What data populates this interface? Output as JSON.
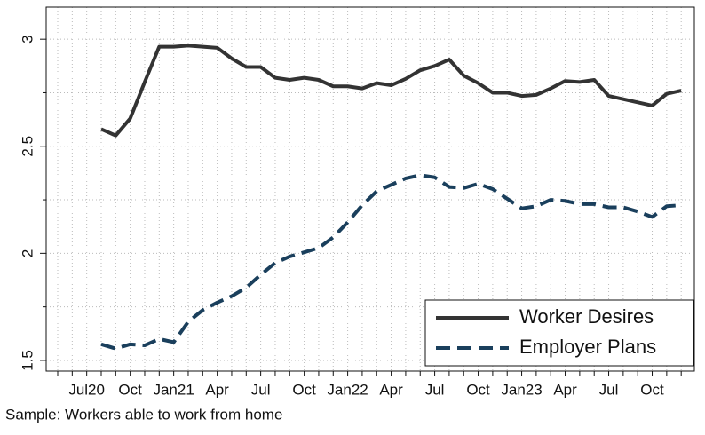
{
  "chart_data": {
    "type": "line",
    "note": "Sample: Workers able to work from home",
    "categories": [
      null,
      null,
      "Jul20",
      null,
      null,
      "Oct",
      null,
      null,
      "Jan21",
      null,
      null,
      "Apr",
      null,
      null,
      "Jul",
      null,
      null,
      "Oct",
      null,
      null,
      "Jan22",
      null,
      null,
      "Apr",
      null,
      null,
      "Jul",
      null,
      null,
      "Oct",
      null,
      null,
      "Jan23",
      null,
      null,
      "Apr",
      null,
      null,
      "Jul",
      null,
      null,
      "Oct",
      null,
      null
    ],
    "series": [
      {
        "name": "Worker Desires",
        "color": "#333333",
        "dash": false,
        "values": [
          null,
          null,
          null,
          2.58,
          2.55,
          2.63,
          2.8,
          2.965,
          2.965,
          2.97,
          2.965,
          2.96,
          2.91,
          2.87,
          2.87,
          2.82,
          2.81,
          2.82,
          2.81,
          2.78,
          2.78,
          2.77,
          2.795,
          2.785,
          2.815,
          2.855,
          2.875,
          2.905,
          2.83,
          2.795,
          2.75,
          2.75,
          2.735,
          2.74,
          2.77,
          2.805,
          2.8,
          2.81,
          2.735,
          2.72,
          2.705,
          2.69,
          2.745,
          2.76
        ]
      },
      {
        "name": "Employer Plans",
        "color": "#1a3f5c",
        "dash": true,
        "values": [
          null,
          null,
          null,
          1.575,
          1.555,
          1.575,
          1.57,
          1.6,
          1.585,
          1.68,
          1.735,
          1.77,
          1.8,
          1.84,
          1.9,
          1.955,
          1.985,
          2.005,
          2.025,
          2.075,
          2.145,
          2.225,
          2.29,
          2.32,
          2.35,
          2.365,
          2.355,
          2.31,
          2.305,
          2.325,
          2.3,
          2.255,
          2.21,
          2.22,
          2.25,
          2.245,
          2.23,
          2.23,
          2.215,
          2.215,
          2.195,
          2.17,
          2.22,
          2.225
        ]
      }
    ],
    "ylim": [
      1.45,
      3.15
    ],
    "yticks": [
      1.5,
      2,
      2.5,
      3
    ],
    "yminorticks": [
      1.75,
      2.25,
      2.75
    ],
    "grid": true,
    "legend": "lower right"
  }
}
